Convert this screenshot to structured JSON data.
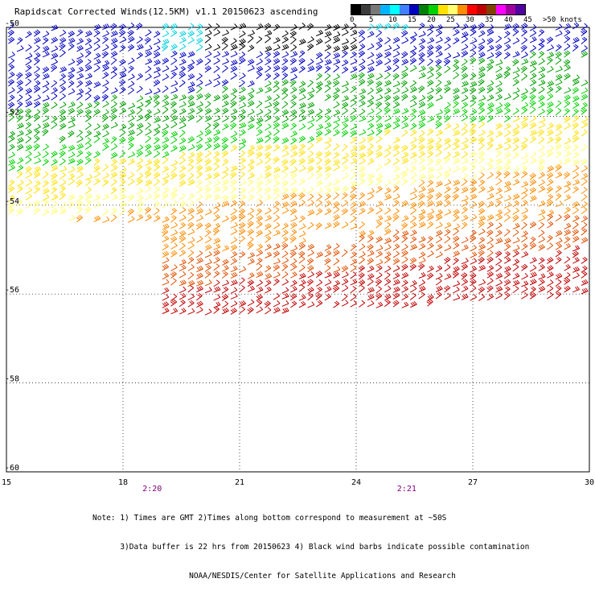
{
  "title": "Rapidscat Corrected Winds(12.5KM) v1.1 20150623 ascending",
  "legend": {
    "colors": [
      "#000000",
      "#3c3c3c",
      "#787878",
      "#00b4ff",
      "#00ffff",
      "#4080ff",
      "#0000c0",
      "#008000",
      "#00d000",
      "#ffe000",
      "#ffff70",
      "#ff8c00",
      "#ff0000",
      "#c00000",
      "#804000",
      "#ff00ff",
      "#a000a0",
      "#5000a0"
    ],
    "labels": [
      "0",
      "5",
      "10",
      "15",
      "20",
      "25",
      "30",
      "35",
      "40",
      "45",
      ">50 knots"
    ]
  },
  "chart_data": {
    "type": "wind_barb_map",
    "x_ticks": [
      "15",
      "18",
      "21",
      "24",
      "27",
      "30"
    ],
    "y_ticks": [
      "-50",
      "-52",
      "-54",
      "-56",
      "-58",
      "-60"
    ],
    "xlim": [
      15,
      30
    ],
    "ylim": [
      -60,
      -50
    ],
    "time_labels": [
      {
        "text": "2:20",
        "x": 18.75
      },
      {
        "text": "2:21",
        "x": 25.3
      }
    ],
    "grid": true,
    "wind_bands": [
      {
        "speed_kt": 12,
        "color": "#0000c0",
        "note": "blue barbs near -50 to -52"
      },
      {
        "speed_kt": 17,
        "color": "#00d000",
        "note": "green barbs near -52 to -53.5"
      },
      {
        "speed_kt": 22,
        "color": "#ffff70",
        "note": "yellow barbs near -53.5 to -54.5"
      },
      {
        "speed_kt": 27,
        "color": "#ff8c00",
        "note": "orange barbs near -54.5 to -56.5"
      },
      {
        "speed_kt": 32,
        "color": "#ff0000",
        "note": "red barbs near -55 to -56"
      }
    ]
  },
  "notes": [
    "Note: 1) Times are GMT 2)Times along bottom correspond to measurement at ~50S",
    "      3)Data buffer is 22 hrs from 20150623 4) Black wind barbs indicate possible contamination",
    "                     NOAA/NESDIS/Center for Satellite Applications and Research"
  ]
}
